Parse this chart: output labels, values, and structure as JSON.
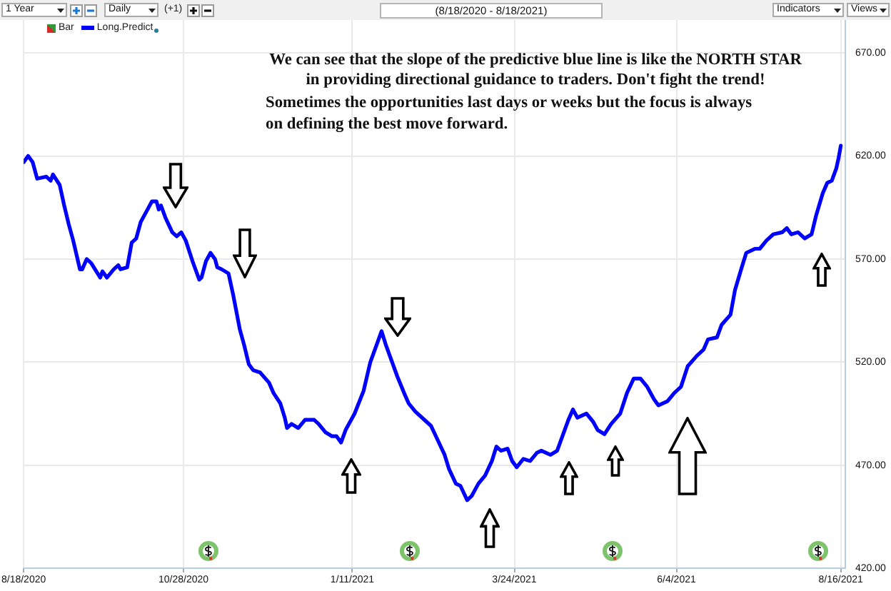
{
  "chart_data": {
    "type": "line",
    "title": "(8/18/2020 - 8/18/2021)",
    "annotations": [
      "We can see that the slope of the predictive blue line is like the NORTH STAR",
      "in providing directional guidance to traders. Don't fight the trend!",
      "Sometimes the opportunities last days or weeks but the focus is always",
      "on defining the best move forward.",
      "1 Year",
      "Daily",
      "(+1)",
      "Indicators",
      "Views"
    ],
    "xlim": [
      "2020-08-18",
      "2021-08-18"
    ],
    "xticks": [
      {
        "value": "2020-08-18",
        "label": "8/18/2020"
      },
      {
        "value": "2020-10-28",
        "label": "10/28/2020"
      },
      {
        "value": "2021-01-11",
        "label": "1/11/2021"
      },
      {
        "value": "2021-03-24",
        "label": "3/24/2021"
      },
      {
        "value": "2021-06-04",
        "label": "6/4/2021"
      },
      {
        "value": "2021-08-16",
        "label": "8/16/2021"
      }
    ],
    "ylim": [
      420,
      686
    ],
    "yticks": [
      {
        "value": 420,
        "label": "420.00"
      },
      {
        "value": 470,
        "label": "470.00"
      },
      {
        "value": 520,
        "label": "520.00"
      },
      {
        "value": 570,
        "label": "570.00"
      },
      {
        "value": 620,
        "label": "620.00"
      },
      {
        "value": 670,
        "label": "670.00"
      }
    ],
    "grid": true,
    "legend": "top left",
    "series": [
      {
        "name": "Bar",
        "type": "bar",
        "color": "#d42a2a"
      },
      {
        "name": "Long.Predict",
        "color": "#0000ff",
        "x": [
          "2020-08-18",
          "2020-08-20",
          "2020-08-22",
          "2020-08-24",
          "2020-08-28",
          "2020-08-30",
          "2020-08-31",
          "2020-09-03",
          "2020-09-05",
          "2020-09-07",
          "2020-09-09",
          "2020-09-12",
          "2020-09-13",
          "2020-09-15",
          "2020-09-17",
          "2020-09-21",
          "2020-09-22",
          "2020-09-24",
          "2020-09-27",
          "2020-09-29",
          "2020-09-30",
          "2020-10-03",
          "2020-10-05",
          "2020-10-07",
          "2020-10-09",
          "2020-10-12",
          "2020-10-14",
          "2020-10-16",
          "2020-10-17",
          "2020-10-18",
          "2020-10-20",
          "2020-10-23",
          "2020-10-25",
          "2020-10-27",
          "2020-10-29",
          "2020-11-01",
          "2020-11-04",
          "2020-11-05",
          "2020-11-07",
          "2020-11-09",
          "2020-11-11",
          "2020-11-12",
          "2020-11-14",
          "2020-11-17",
          "2020-11-19",
          "2020-11-22",
          "2020-11-24",
          "2020-11-26",
          "2020-11-28",
          "2020-12-01",
          "2020-12-05",
          "2020-12-07",
          "2020-12-10",
          "2020-12-12",
          "2020-12-13",
          "2020-12-15",
          "2020-12-18",
          "2020-12-21",
          "2020-12-25",
          "2020-12-27",
          "2020-12-30",
          "2021-01-02",
          "2021-01-04",
          "2021-01-06",
          "2021-01-08",
          "2021-01-12",
          "2021-01-16",
          "2021-01-19",
          "2021-01-22",
          "2021-01-24",
          "2021-01-26",
          "2021-01-29",
          "2021-01-31",
          "2021-02-03",
          "2021-02-05",
          "2021-02-08",
          "2021-02-11",
          "2021-02-15",
          "2021-02-18",
          "2021-02-21",
          "2021-02-23",
          "2021-02-26",
          "2021-02-28",
          "2021-03-03",
          "2021-03-05",
          "2021-03-08",
          "2021-03-11",
          "2021-03-14",
          "2021-03-16",
          "2021-03-18",
          "2021-03-21",
          "2021-03-23",
          "2021-03-25",
          "2021-03-28",
          "2021-03-31",
          "2021-04-03",
          "2021-04-05",
          "2021-04-09",
          "2021-04-12",
          "2021-04-15",
          "2021-04-17",
          "2021-04-19",
          "2021-04-21",
          "2021-04-25",
          "2021-04-28",
          "2021-04-30",
          "2021-05-03",
          "2021-05-06",
          "2021-05-10",
          "2021-05-13",
          "2021-05-16",
          "2021-05-19",
          "2021-05-22",
          "2021-05-25",
          "2021-05-27",
          "2021-05-31",
          "2021-06-03",
          "2021-06-06",
          "2021-06-09",
          "2021-06-13",
          "2021-06-16",
          "2021-06-18",
          "2021-06-22",
          "2021-06-24",
          "2021-06-28",
          "2021-06-30",
          "2021-07-03",
          "2021-07-05",
          "2021-07-09",
          "2021-07-11",
          "2021-07-14",
          "2021-07-17",
          "2021-07-21",
          "2021-07-23",
          "2021-07-25",
          "2021-07-28",
          "2021-07-31",
          "2021-08-03",
          "2021-08-05",
          "2021-08-08",
          "2021-08-10",
          "2021-08-12",
          "2021-08-14",
          "2021-08-15",
          "2021-08-16"
        ],
        "values": [
          617,
          620,
          617,
          609,
          610,
          608,
          611,
          606,
          596,
          587,
          579,
          565,
          565,
          570,
          568,
          561,
          564,
          561,
          565,
          567,
          565,
          566,
          578,
          580,
          588,
          594,
          598,
          598,
          594,
          596,
          590,
          583,
          581,
          583,
          579,
          569,
          560,
          561,
          569,
          573,
          570,
          566,
          565,
          563,
          553,
          536,
          528,
          519,
          516,
          515,
          510,
          505,
          500,
          493,
          488,
          490,
          488,
          492,
          492,
          490,
          486,
          484,
          484,
          481,
          487,
          495,
          506,
          520,
          529,
          535,
          528,
          519,
          513,
          505,
          500,
          496,
          493,
          489,
          482,
          475,
          468,
          461,
          460,
          453,
          455,
          461,
          465,
          472,
          479,
          477,
          478,
          472,
          469,
          473,
          472,
          476,
          477,
          475,
          477,
          486,
          492,
          497,
          493,
          495,
          491,
          487,
          485,
          490,
          495,
          505,
          512,
          512,
          508,
          502,
          499,
          501,
          505,
          508,
          518,
          523,
          526,
          531,
          532,
          538,
          543,
          555,
          566,
          573,
          575,
          575,
          579,
          582,
          583,
          585,
          582,
          583,
          580,
          582,
          591,
          602,
          607,
          608,
          614,
          619,
          625
        ]
      }
    ]
  }
}
